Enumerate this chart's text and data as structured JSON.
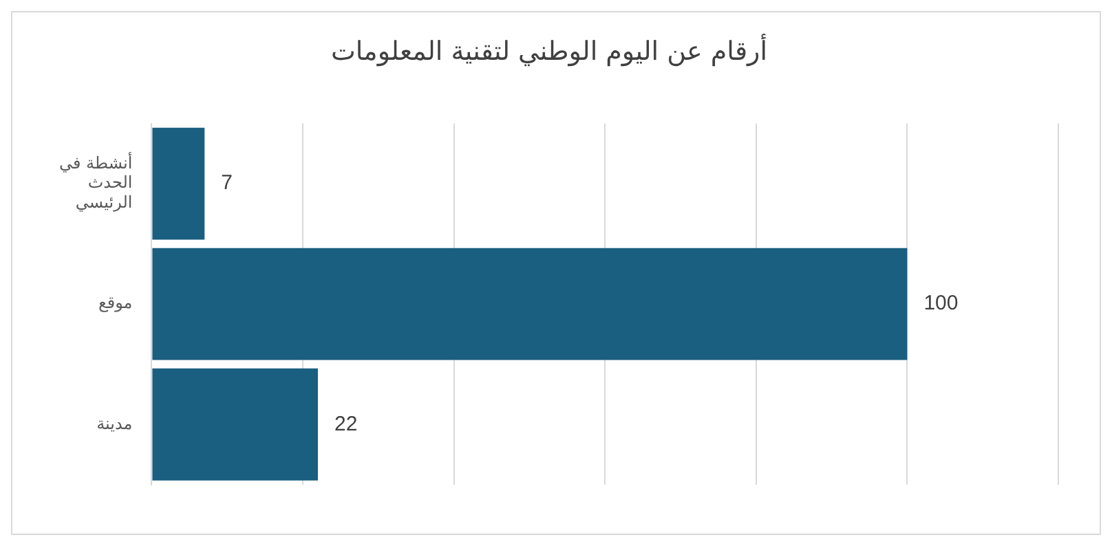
{
  "chart_data": {
    "type": "bar",
    "orientation": "horizontal",
    "title": "أرقام عن اليوم الوطني لتقنية المعلومات",
    "categories": [
      "أنشطة في الحدث الرئيسي",
      "موقع",
      "مدينة"
    ],
    "values": [
      7,
      100,
      22
    ],
    "color": "#1a5e80",
    "xlim": [
      0,
      120
    ],
    "xticks": [
      {
        "value": 0,
        "label": null
      },
      {
        "value": 20,
        "label": null
      },
      {
        "value": 40,
        "label": null
      },
      {
        "value": 60,
        "label": null
      },
      {
        "value": 80,
        "label": null
      },
      {
        "value": 100,
        "label": null
      },
      {
        "value": 120,
        "label": null
      }
    ],
    "grid": "x",
    "tick_labels": "y",
    "data_labels": true,
    "legend": false
  }
}
